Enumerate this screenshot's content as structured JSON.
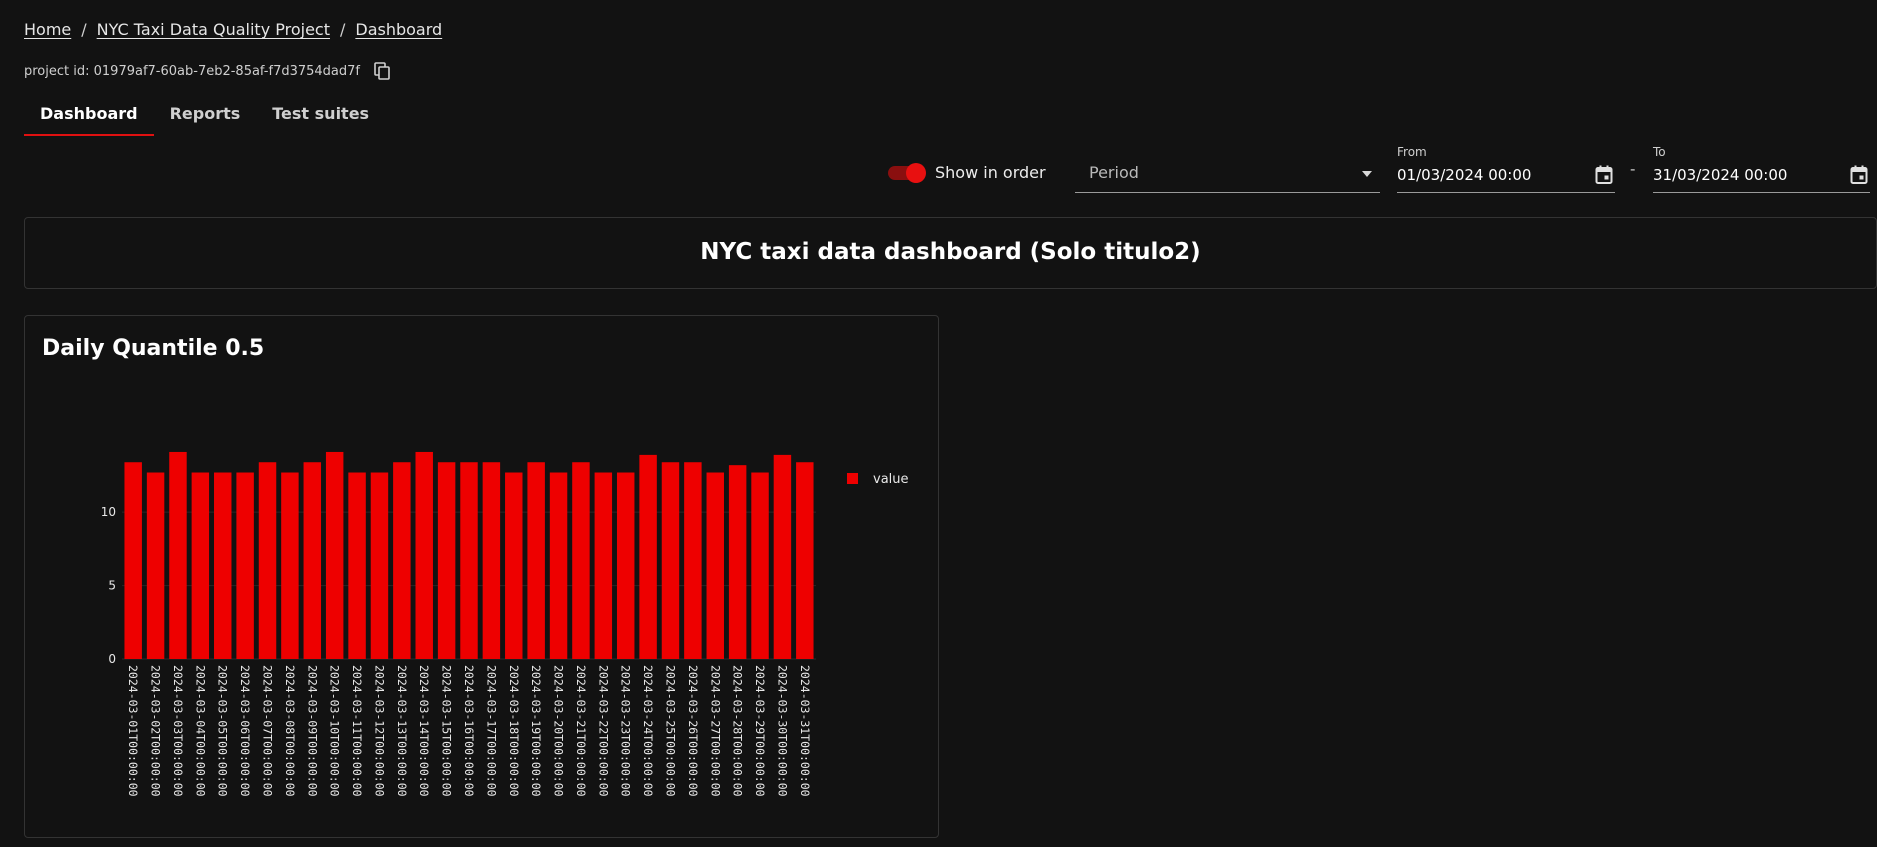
{
  "breadcrumb": {
    "home": "Home",
    "separator": "/",
    "project": "NYC Taxi Data Quality Project",
    "current": "Dashboard"
  },
  "project": {
    "id_label": "project id: 01979af7-60ab-7eb2-85af-f7d3754dad7f",
    "copy_icon": "copy-icon"
  },
  "tabs": [
    {
      "label": "Dashboard",
      "active": true
    },
    {
      "label": "Reports",
      "active": false
    },
    {
      "label": "Test suites",
      "active": false
    }
  ],
  "controls": {
    "show_in_order_label": "Show in order",
    "show_in_order_on": true,
    "period_placeholder": "Period",
    "from_label": "From",
    "from_value": "01/03/2024 00:00",
    "to_label": "To",
    "to_value": "31/03/2024 00:00",
    "range_dash": "-"
  },
  "dashboard": {
    "title": "NYC taxi data dashboard (Solo titulo2)"
  },
  "colors": {
    "accent": "#e01010",
    "bar": "#ee0000",
    "background": "#121212"
  },
  "chart_data": {
    "type": "bar",
    "title": "Daily Quantile 0.5",
    "series_name": "value",
    "categories": [
      "2024-03-01T00:00:00",
      "2024-03-02T00:00:00",
      "2024-03-03T00:00:00",
      "2024-03-04T00:00:00",
      "2024-03-05T00:00:00",
      "2024-03-06T00:00:00",
      "2024-03-07T00:00:00",
      "2024-03-08T00:00:00",
      "2024-03-09T00:00:00",
      "2024-03-10T00:00:00",
      "2024-03-11T00:00:00",
      "2024-03-12T00:00:00",
      "2024-03-13T00:00:00",
      "2024-03-14T00:00:00",
      "2024-03-15T00:00:00",
      "2024-03-16T00:00:00",
      "2024-03-17T00:00:00",
      "2024-03-18T00:00:00",
      "2024-03-19T00:00:00",
      "2024-03-20T00:00:00",
      "2024-03-21T00:00:00",
      "2024-03-22T00:00:00",
      "2024-03-23T00:00:00",
      "2024-03-24T00:00:00",
      "2024-03-25T00:00:00",
      "2024-03-26T00:00:00",
      "2024-03-27T00:00:00",
      "2024-03-28T00:00:00",
      "2024-03-29T00:00:00",
      "2024-03-30T00:00:00",
      "2024-03-31T00:00:00"
    ],
    "values": [
      13.4,
      12.7,
      14.1,
      12.7,
      12.7,
      12.7,
      13.4,
      12.7,
      13.4,
      14.1,
      12.7,
      12.7,
      13.4,
      14.1,
      13.4,
      13.4,
      13.4,
      12.7,
      13.4,
      12.7,
      13.4,
      12.7,
      12.7,
      13.9,
      13.4,
      13.4,
      12.7,
      13.2,
      12.7,
      13.9,
      13.4
    ],
    "yticks": [
      0,
      5,
      10
    ],
    "ylim": [
      0,
      19
    ],
    "legend": "top-right"
  }
}
